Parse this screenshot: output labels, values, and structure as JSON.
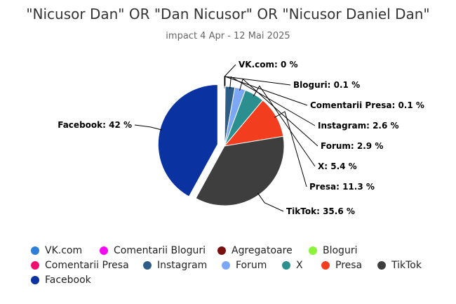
{
  "chart_data": {
    "type": "pie",
    "title": "\"Nicusor Dan\" OR \"Dan Nicusor\" OR \"Nicusor Daniel Dan\"",
    "subtitle": "impact 4 Apr - 12 Mai 2025",
    "slices": [
      {
        "name": "VK.com",
        "value": 0,
        "label": "VK.com: 0 %",
        "color": "#2f7ed8"
      },
      {
        "name": "Bloguri",
        "value": 0.1,
        "label": "Bloguri: 0.1 %",
        "color": "#8bf33a"
      },
      {
        "name": "Comentarii Presa",
        "value": 0.1,
        "label": "Comentarii Presa: 0.1 %",
        "color": "#f20d72"
      },
      {
        "name": "Instagram",
        "value": 2.6,
        "label": "Instagram: 2.6 %",
        "color": "#2d5d86"
      },
      {
        "name": "Forum",
        "value": 2.9,
        "label": "Forum: 2.9 %",
        "color": "#7ba7f5"
      },
      {
        "name": "X",
        "value": 5.4,
        "label": "X: 5.4 %",
        "color": "#2c8f8f"
      },
      {
        "name": "Presa",
        "value": 11.3,
        "label": "Presa: 11.3 %",
        "color": "#f23d1f"
      },
      {
        "name": "TikTok",
        "value": 35.6,
        "label": "TikTok: 35.6 %",
        "color": "#3e3e3e"
      },
      {
        "name": "Facebook",
        "value": 42,
        "label": "Facebook: 42 %",
        "color": "#0a32a0"
      }
    ],
    "legend": [
      {
        "name": "VK.com",
        "color": "#2f7ed8"
      },
      {
        "name": "Comentarii Bloguri",
        "color": "#f20df0"
      },
      {
        "name": "Agregatoare",
        "color": "#7a0f0f"
      },
      {
        "name": "Bloguri",
        "color": "#8bf33a"
      },
      {
        "name": "Comentarii Presa",
        "color": "#f20d72"
      },
      {
        "name": "Instagram",
        "color": "#2d5d86"
      },
      {
        "name": "Forum",
        "color": "#7ba7f5"
      },
      {
        "name": "X",
        "color": "#2c8f8f"
      },
      {
        "name": "Presa",
        "color": "#f23d1f"
      },
      {
        "name": "TikTok",
        "color": "#3e3e3e"
      },
      {
        "name": "Facebook",
        "color": "#0a32a0"
      }
    ],
    "legend_position": "bottom"
  }
}
